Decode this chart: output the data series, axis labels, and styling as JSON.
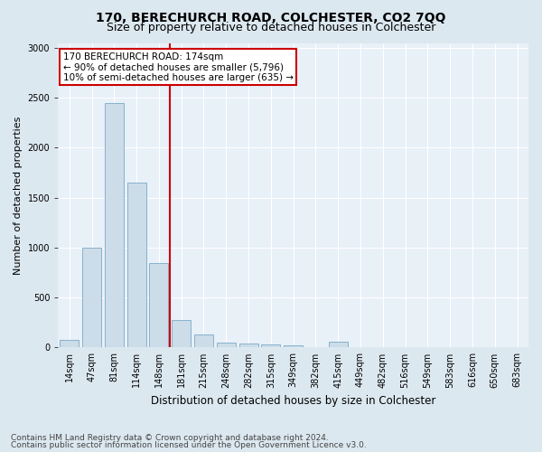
{
  "title1": "170, BERECHURCH ROAD, COLCHESTER, CO2 7QQ",
  "title2": "Size of property relative to detached houses in Colchester",
  "xlabel": "Distribution of detached houses by size in Colchester",
  "ylabel": "Number of detached properties",
  "footnote1": "Contains HM Land Registry data © Crown copyright and database right 2024.",
  "footnote2": "Contains public sector information licensed under the Open Government Licence v3.0.",
  "categories": [
    "14sqm",
    "47sqm",
    "81sqm",
    "114sqm",
    "148sqm",
    "181sqm",
    "215sqm",
    "248sqm",
    "282sqm",
    "315sqm",
    "349sqm",
    "382sqm",
    "415sqm",
    "449sqm",
    "482sqm",
    "516sqm",
    "549sqm",
    "583sqm",
    "616sqm",
    "650sqm",
    "683sqm"
  ],
  "values": [
    75,
    1000,
    2450,
    1650,
    850,
    275,
    130,
    50,
    40,
    30,
    20,
    0,
    55,
    0,
    0,
    0,
    0,
    0,
    0,
    0,
    0
  ],
  "bar_color": "#ccdce8",
  "bar_edge_color": "#7aaac8",
  "vline_x": 5,
  "vline_color": "#cc0000",
  "annotation_text": "170 BERECHURCH ROAD: 174sqm\n← 90% of detached houses are smaller (5,796)\n10% of semi-detached houses are larger (635) →",
  "annotation_box_color": "white",
  "annotation_box_edge_color": "#cc0000",
  "ylim": [
    0,
    3050
  ],
  "bg_color": "#dce8f0",
  "plot_bg_color": "#e8f0f8",
  "grid_color": "white",
  "title1_fontsize": 10,
  "title2_fontsize": 9,
  "xlabel_fontsize": 8.5,
  "ylabel_fontsize": 8,
  "tick_fontsize": 7,
  "footnote_fontsize": 6.5
}
